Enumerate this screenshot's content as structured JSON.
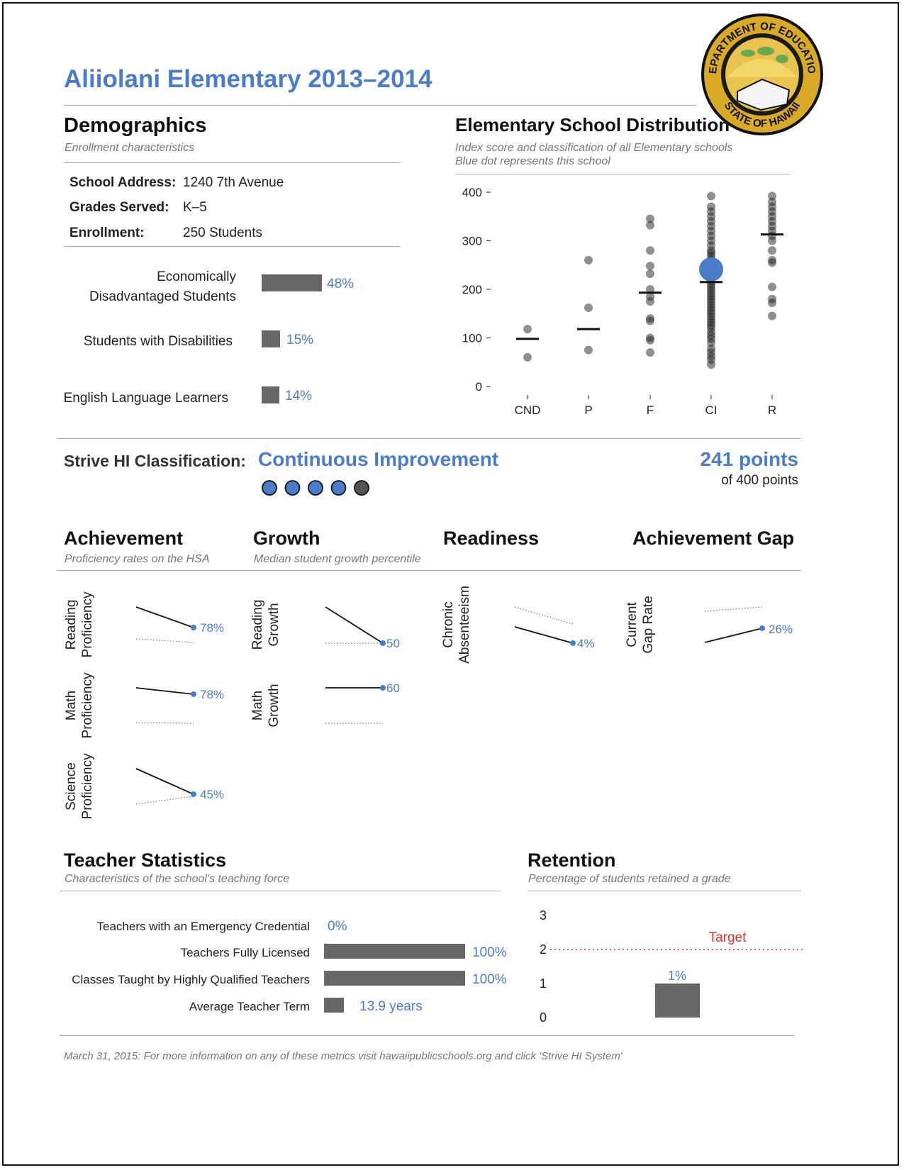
{
  "title": "Aliiolani Elementary 2013–2014",
  "seal": {
    "top_text": "DEPARTMENT OF EDUCATION",
    "bottom_text": "STATE OF HAWAII"
  },
  "demographics": {
    "heading": "Demographics",
    "subtitle": "Enrollment characteristics",
    "address_label": "School Address:",
    "address_value": "1240 7th Avenue",
    "grades_label": "Grades Served:",
    "grades_value": "K–5",
    "enrollment_label": "Enrollment:",
    "enrollment_value": "250 Students",
    "bars": [
      {
        "label_line1": "Economically",
        "label_line2": "Disadvantaged Students",
        "value": "48%",
        "fraction": 0.48
      },
      {
        "label": "Students with Disabilities",
        "value": "15%",
        "fraction": 0.15
      },
      {
        "label": "English Language Learners",
        "value": "14%",
        "fraction": 0.14
      }
    ]
  },
  "distribution": {
    "heading": "Elementary School Distribution",
    "subtitle_line1": "Index score and classification of all Elementary schools",
    "subtitle_line2": "Blue dot represents this school"
  },
  "chart_data": [
    {
      "type": "scatter",
      "title": "Elementary School Distribution",
      "categories": [
        "CND",
        "P",
        "F",
        "CI",
        "R"
      ],
      "yticks": [
        "0",
        "100",
        "200",
        "300",
        "400"
      ],
      "ylim": [
        0,
        400
      ],
      "points": {
        "CND": [
          118,
          60
        ],
        "P": [
          260,
          162,
          75
        ],
        "F": [
          345,
          332,
          280,
          248,
          232,
          200,
          185,
          175,
          140,
          135,
          100,
          95,
          70
        ],
        "CI": [
          392,
          370,
          360,
          350,
          340,
          330,
          320,
          310,
          300,
          290,
          280,
          275,
          268,
          262,
          255,
          248,
          240,
          234,
          228,
          222,
          216,
          210,
          204,
          198,
          192,
          186,
          180,
          174,
          168,
          162,
          156,
          150,
          144,
          138,
          132,
          126,
          120,
          112,
          105,
          98,
          90,
          78,
          70,
          62,
          55,
          45
        ],
        "R": [
          392,
          380,
          370,
          360,
          350,
          340,
          330,
          320,
          310,
          300,
          280,
          260,
          255,
          205,
          180,
          172,
          145
        ]
      },
      "medians": {
        "CND": 98,
        "P": 118,
        "F": 193,
        "CI": 215,
        "R": 313
      },
      "this_school": {
        "category": "CI",
        "value": 241
      }
    },
    {
      "type": "bar",
      "title": "Retention",
      "categories": [
        ""
      ],
      "values": [
        1
      ],
      "value_label": "1%",
      "yticks": [
        "0",
        "1",
        "2",
        "3"
      ],
      "ylim": [
        0,
        3
      ],
      "target": 2,
      "target_label": "Target"
    }
  ],
  "classification": {
    "label": "Strive HI Classification:",
    "value": "Continuous Improvement",
    "points": "241 points",
    "of_points": "of 400 points",
    "dots_filled": 4,
    "dots_total": 5
  },
  "sections": {
    "achievement": {
      "heading": "Achievement",
      "subtitle": "Proficiency rates on the HSA"
    },
    "growth": {
      "heading": "Growth",
      "subtitle": "Median student growth percentile"
    },
    "readiness": {
      "heading": "Readiness"
    },
    "gap": {
      "heading": "Achievement Gap"
    }
  },
  "metrics": {
    "reading_prof": {
      "line1": "Reading",
      "line2": "Proficiency",
      "value": "78%"
    },
    "math_prof": {
      "line1": "Math",
      "line2": "Proficiency",
      "value": "78%"
    },
    "science_prof": {
      "line1": "Science",
      "line2": "Proficiency",
      "value": "45%"
    },
    "reading_growth": {
      "line1": "Reading",
      "line2": "Growth",
      "value": "50"
    },
    "math_growth": {
      "line1": "Math",
      "line2": "Growth",
      "value": "60"
    },
    "absenteeism": {
      "line1": "Chronic",
      "line2": "Absenteeism",
      "value": "4%"
    },
    "gap_rate": {
      "line1": "Current",
      "line2": "Gap Rate",
      "value": "26%"
    }
  },
  "teachers": {
    "heading": "Teacher Statistics",
    "subtitle": "Characteristics of the school's teaching force",
    "rows": [
      {
        "label": "Teachers with an Emergency Credential",
        "value": "0%",
        "fraction": 0
      },
      {
        "label": "Teachers Fully Licensed",
        "value": "100%",
        "fraction": 1
      },
      {
        "label": "Classes Taught by Highly Qualified Teachers",
        "value": "100%",
        "fraction": 1
      },
      {
        "label": "Average Teacher Term",
        "value": "13.9 years",
        "fraction": 0.139
      }
    ]
  },
  "retention": {
    "heading": "Retention",
    "subtitle": "Percentage of students retained a grade"
  },
  "footer": "March 31, 2015: For more information on any of these metrics visit hawaiipublicschools.org and click 'Strive HI System'",
  "colors": {
    "accent": "#4a7cc9",
    "bar": "#666666",
    "target": "#d0342c",
    "dark_dot": "#222222"
  }
}
